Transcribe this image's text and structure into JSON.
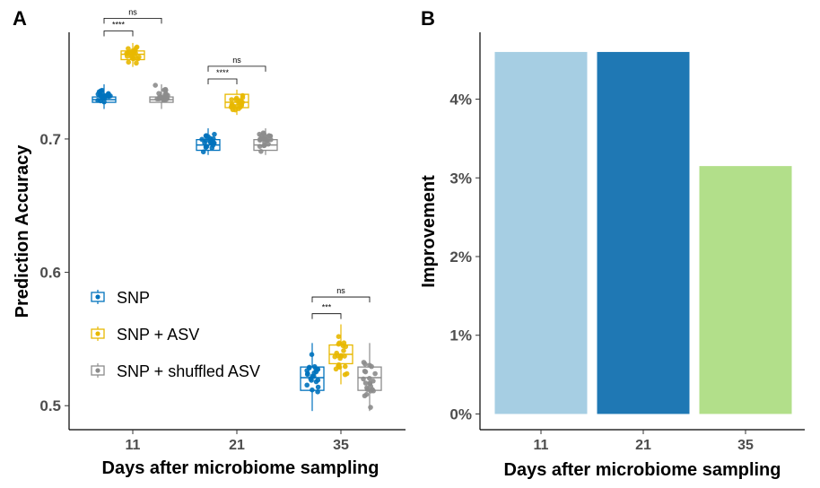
{
  "chart_data": [
    {
      "panel": "A",
      "type": "box",
      "xlabel": "Days after microbiome sampling",
      "ylabel": "Prediction Accuracy",
      "categories": [
        "11",
        "21",
        "35"
      ],
      "yticks": [
        "0.5",
        "0.6",
        "0.7"
      ],
      "ytick_values": [
        0.5,
        0.6,
        0.7
      ],
      "ylim": [
        0.482,
        0.78
      ],
      "series": [
        {
          "name": "SNP",
          "color": "#0072bd",
          "boxes": [
            {
              "q1": 0.7275,
              "median": 0.7295,
              "q3": 0.7315,
              "wlow": 0.7225,
              "whigh": 0.741
            },
            {
              "q1": 0.6915,
              "median": 0.6955,
              "q3": 0.6995,
              "wlow": 0.688,
              "whigh": 0.708
            },
            {
              "q1": 0.5115,
              "median": 0.521,
              "q3": 0.529,
              "wlow": 0.496,
              "whigh": 0.547
            }
          ]
        },
        {
          "name": "SNP + ASV",
          "color": "#e8b800",
          "boxes": [
            {
              "q1": 0.7595,
              "median": 0.7635,
              "q3": 0.766,
              "wlow": 0.754,
              "whigh": 0.772
            },
            {
              "q1": 0.7235,
              "median": 0.7275,
              "q3": 0.7335,
              "wlow": 0.718,
              "whigh": 0.737
            },
            {
              "q1": 0.5315,
              "median": 0.5385,
              "q3": 0.5455,
              "wlow": 0.516,
              "whigh": 0.561
            }
          ]
        },
        {
          "name": "SNP + shuffled ASV",
          "color": "#8c8c8c",
          "boxes": [
            {
              "q1": 0.7275,
              "median": 0.7295,
              "q3": 0.7315,
              "wlow": 0.7225,
              "whigh": 0.741
            },
            {
              "q1": 0.6915,
              "median": 0.6955,
              "q3": 0.6995,
              "wlow": 0.688,
              "whigh": 0.708
            },
            {
              "q1": 0.5115,
              "median": 0.521,
              "q3": 0.529,
              "wlow": 0.496,
              "whigh": 0.547
            }
          ]
        }
      ],
      "annotations": [
        {
          "category": "11",
          "from": "SNP",
          "to": "SNP + ASV",
          "label": "****",
          "y": 0.781
        },
        {
          "category": "11",
          "from": "SNP",
          "to": "SNP + shuffled ASV",
          "label": "ns",
          "y": 0.7905
        },
        {
          "category": "21",
          "from": "SNP",
          "to": "SNP + ASV",
          "label": "****",
          "y": 0.745
        },
        {
          "category": "21",
          "from": "SNP",
          "to": "SNP + shuffled ASV",
          "label": "ns",
          "y": 0.7545
        },
        {
          "category": "35",
          "from": "SNP",
          "to": "SNP + ASV",
          "label": "***",
          "y": 0.569
        },
        {
          "category": "35",
          "from": "SNP",
          "to": "SNP + shuffled ASV",
          "label": "ns",
          "y": 0.5815
        }
      ],
      "legend": {
        "position": "bottom-left",
        "entries": [
          "SNP",
          "SNP + ASV",
          "SNP + shuffled ASV"
        ]
      }
    },
    {
      "panel": "B",
      "type": "bar",
      "xlabel": "Days after microbiome sampling",
      "ylabel": "Improvement",
      "categories": [
        "11",
        "21",
        "35"
      ],
      "values": [
        4.6,
        4.6,
        3.15
      ],
      "colors": [
        "#a6cee3",
        "#1f78b4",
        "#b2df8a"
      ],
      "yticks": [
        "0%",
        "1%",
        "2%",
        "3%",
        "4%"
      ],
      "ytick_values": [
        0,
        1,
        2,
        3,
        4
      ],
      "ylim": [
        -0.2,
        4.85
      ]
    }
  ]
}
